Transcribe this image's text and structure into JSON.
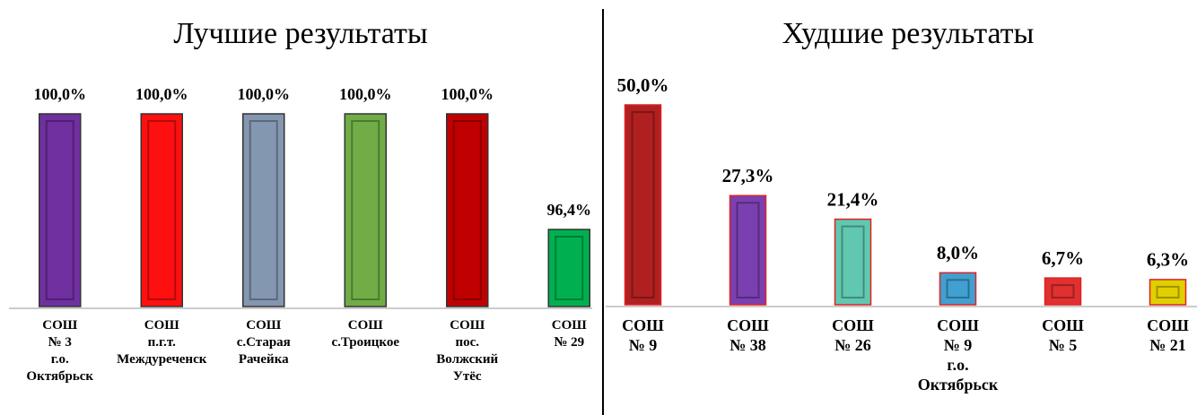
{
  "chart_data": [
    {
      "type": "bar",
      "title": "Лучшие результаты",
      "categories": [
        "СОШ\n№ 3\nг.о.\nОктябрьск",
        "СОШ\nп.г.т.\nМеждуреченск",
        "СОШ\nс.Старая\nРачейка",
        "СОШ\nс.Троицкое",
        "СОШ\nпос.\nВолжский\nУтёс",
        "СОШ\n№ 29"
      ],
      "values": [
        100,
        100,
        100,
        100,
        100,
        96.4
      ],
      "value_labels": [
        "100,0%",
        "100,0%",
        "100,0%",
        "100,0%",
        "100,0%",
        "96,4%"
      ],
      "colors": [
        "#7030a0",
        "#ff1010",
        "#8497b0",
        "#70ad47",
        "#c00000",
        "#00b050"
      ],
      "ylim": [
        94,
        100
      ]
    },
    {
      "type": "bar",
      "title": "Худшие результаты",
      "categories": [
        "СОШ\n№ 9",
        "СОШ\n№ 38",
        "СОШ\n№ 26",
        "СОШ\n№ 9\nг.о.\nОктябрьск",
        "СОШ\n№ 5",
        "СОШ\n№ 21"
      ],
      "values": [
        50,
        27.3,
        21.4,
        8,
        6.7,
        6.3
      ],
      "value_labels": [
        "50,0%",
        "27,3%",
        "21,4%",
        "8,0%",
        "6,7%",
        "6,3%"
      ],
      "colors": [
        "#b02020",
        "#7a40b0",
        "#60c8b0",
        "#40a0d0",
        "#e03030",
        "#e0d000"
      ],
      "ylim": [
        0,
        50
      ]
    }
  ]
}
